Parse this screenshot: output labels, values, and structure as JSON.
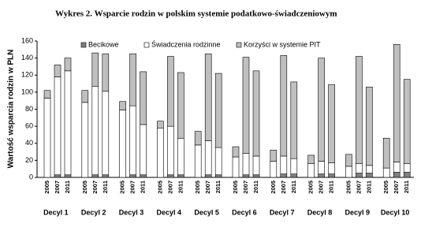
{
  "chart_data": {
    "type": "bar",
    "stacked": true,
    "title": "Wykres 2. Wsparcie rodzin w polskim systemie podatkowo-świadczeniowym",
    "y_label": "Wartość wsparcia rodzin w PLN",
    "groups": [
      "Decyl 1",
      "Decyl 2",
      "Decyl 3",
      "Decyl 4",
      "Decyl 5",
      "Decyl 6",
      "Decyl 7",
      "Decyl 8",
      "Decyl 9",
      "Decyl 10"
    ],
    "categories": [
      "2005",
      "2007",
      "2011",
      "2005",
      "2007",
      "2011",
      "2005",
      "2007",
      "2011",
      "2005",
      "2007",
      "2011",
      "2005",
      "2007",
      "2011",
      "2005",
      "2007",
      "2011",
      "2005",
      "2007",
      "2011",
      "2005",
      "2007",
      "2011",
      "2005",
      "2007",
      "2011",
      "2005",
      "2007",
      "2011"
    ],
    "series": [
      {
        "name": "Becikowe",
        "color": "#7f7f7f",
        "values": [
          0,
          3,
          3,
          0,
          3,
          3,
          0,
          3,
          3,
          0,
          3,
          3,
          0,
          3,
          3,
          0,
          3,
          3,
          0,
          4,
          4,
          0,
          4,
          4,
          0,
          5,
          5,
          0,
          6,
          6
        ]
      },
      {
        "name": "Świadczenia rodzinne",
        "color": "#ffffff",
        "values": [
          93,
          115,
          122,
          88,
          104,
          98,
          79,
          81,
          59,
          58,
          57,
          43,
          38,
          40,
          32,
          24,
          25,
          22,
          19,
          21,
          18,
          16,
          15,
          13,
          13,
          11,
          9,
          11,
          12,
          10
        ]
      },
      {
        "name": "Korzyści w systemie PIT",
        "color": "#bfbfbf",
        "values": [
          9,
          14,
          15,
          14,
          39,
          44,
          10,
          61,
          62,
          8,
          82,
          77,
          16,
          102,
          87,
          12,
          113,
          100,
          13,
          118,
          90,
          10,
          121,
          92,
          14,
          126,
          92,
          35,
          138,
          99
        ]
      }
    ],
    "ylim": [
      0,
      160
    ],
    "yticks": [
      0,
      20,
      40,
      60,
      80,
      100,
      120,
      140,
      160
    ]
  }
}
